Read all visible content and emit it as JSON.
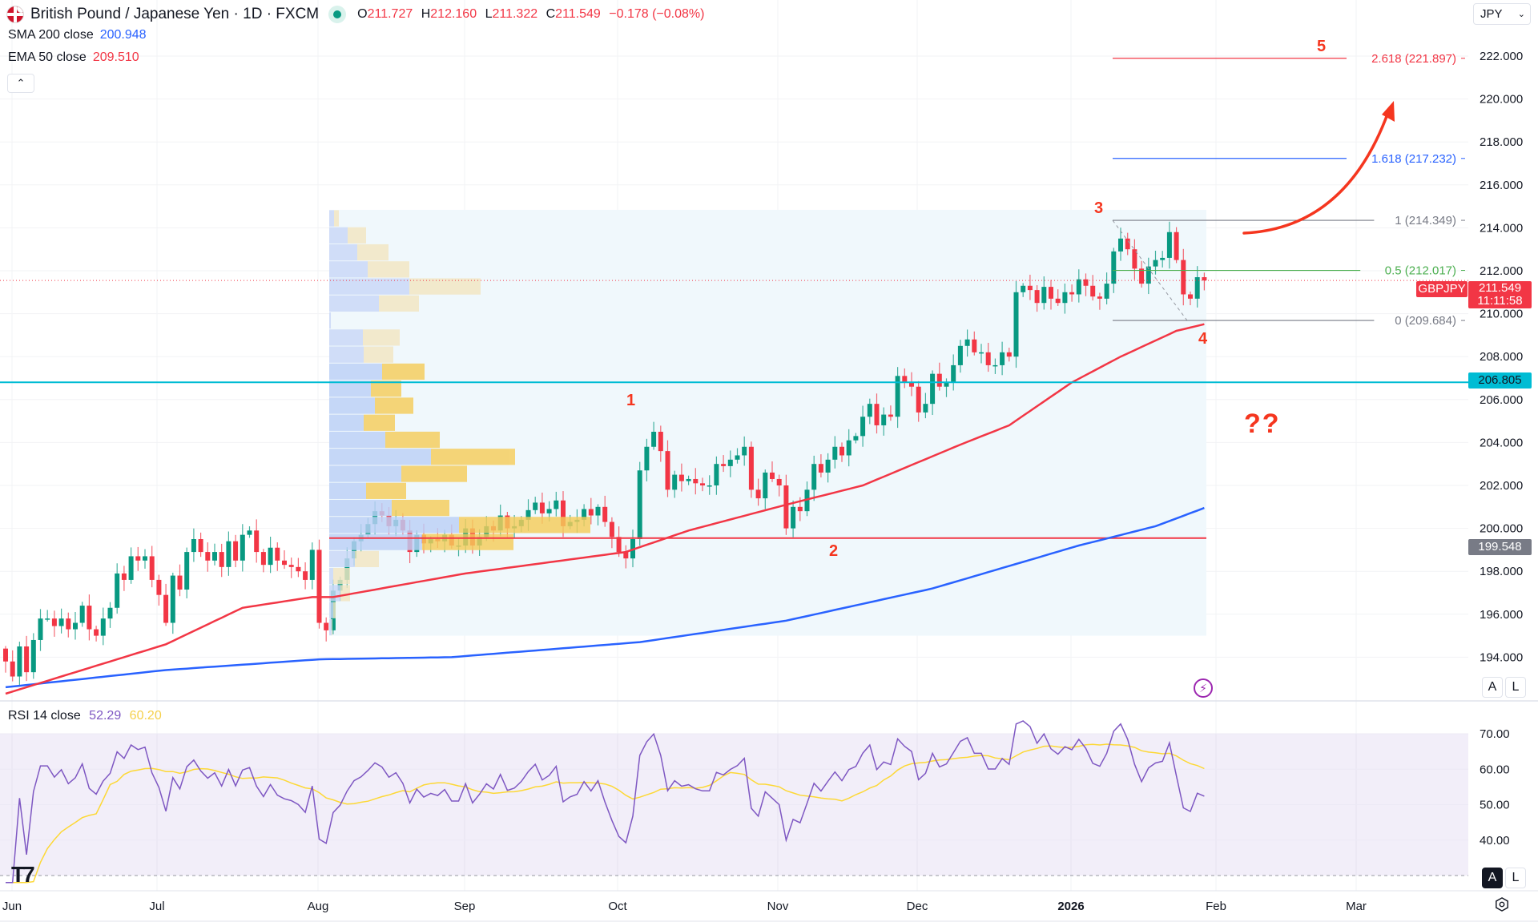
{
  "header": {
    "flag_icon": "gbp-jpy-flag-icon",
    "title": "British Pound / Japanese Yen · 1D · FXCM",
    "market_status_color": "#089981",
    "ohlc": {
      "o_label": "O",
      "o": "211.727",
      "h_label": "H",
      "h": "212.160",
      "l_label": "L",
      "l": "211.322",
      "c_label": "C",
      "c": "211.549",
      "change": "−0.178 (−0.08%)"
    },
    "collapse_icon": "chevron-up-icon"
  },
  "indicators": [
    {
      "name": "SMA 200 close",
      "value": "200.948",
      "color": "#2962ff"
    },
    {
      "name": "EMA 50 close",
      "value": "209.510",
      "color": "#f23645"
    }
  ],
  "currency": {
    "value": "JPY",
    "icon": "chevron-down-icon"
  },
  "price_axis": {
    "ticks": [
      "222.000",
      "220.000",
      "218.000",
      "216.000",
      "214.000",
      "212.000",
      "210.000",
      "208.000",
      "206.000",
      "204.000",
      "202.000",
      "200.000",
      "198.000",
      "196.000",
      "194.000"
    ],
    "symbol": "GBPJPY",
    "last_price": "211.549",
    "countdown": "11:11:58",
    "hline_label": "206.805",
    "poc_label": "199.548"
  },
  "fib_levels": [
    {
      "label": "2.618 (221.897)",
      "price": 221.897,
      "color": "#f23645"
    },
    {
      "label": "1.618 (217.232)",
      "price": 217.232,
      "color": "#2962ff"
    },
    {
      "label": "1 (214.349)",
      "price": 214.349,
      "color": "#787b86"
    },
    {
      "label": "0.5 (212.017)",
      "price": 212.017,
      "color": "#4caf50"
    },
    {
      "label": "0 (209.684)",
      "price": 209.684,
      "color": "#787b86"
    }
  ],
  "annotations": {
    "waves": [
      "1",
      "2",
      "3",
      "4",
      "5"
    ],
    "question": "??",
    "arrow_color": "#f5361f"
  },
  "time_axis": [
    "Jun",
    "Jul",
    "Aug",
    "Sep",
    "Oct",
    "Nov",
    "Dec",
    "2026",
    "Feb",
    "Mar"
  ],
  "rsi": {
    "label": "RSI 14 close",
    "value": "52.29",
    "ma_value": "60.20",
    "color": "#7e57c2",
    "ma_color": "#fdd835",
    "ticks": [
      "70.00",
      "60.00",
      "50.00",
      "40.00"
    ],
    "bands": [
      70,
      50,
      30
    ]
  },
  "buttons": {
    "auto": "A",
    "log": "L"
  },
  "icons": {
    "logo": "tradingview-logo",
    "settings": "gear-icon",
    "alert": "lightning-icon"
  },
  "colors": {
    "up": "#089981",
    "down": "#f23645",
    "hline": "#00bcd4",
    "poc": "#f23645"
  },
  "chart_data": {
    "type": "candlestick",
    "symbol": "GBPJPY",
    "interval": "1D",
    "ylim": [
      193,
      223
    ],
    "first_open": 194.4,
    "closes": [
      193.8,
      193.1,
      194.5,
      193.3,
      194.8,
      195.8,
      195.8,
      195.45,
      195.8,
      195.3,
      195.6,
      196.4,
      195.3,
      195.0,
      195.8,
      196.3,
      197.9,
      197.6,
      198.7,
      198.5,
      198.7,
      197.6,
      196.9,
      195.6,
      197.8,
      197.15,
      198.9,
      199.5,
      198.9,
      198.5,
      198.9,
      198.2,
      199.4,
      198.5,
      199.7,
      199.9,
      198.9,
      198.3,
      199.1,
      198.5,
      198.3,
      198.2,
      198.0,
      197.6,
      199.0,
      195.6,
      195.25,
      197.1,
      197.6,
      198.6,
      199.4,
      199.7,
      200.2,
      200.8,
      200.6,
      200.1,
      200.4,
      199.9,
      198.9,
      199.7,
      199.3,
      199.5,
      199.4,
      199.7,
      199.2,
      199.2,
      200.0,
      199.2,
      199.6,
      200.1,
      199.9,
      200.6,
      200.0,
      200.1,
      200.4,
      200.85,
      201.2,
      200.7,
      200.9,
      201.3,
      200.1,
      200.3,
      200.4,
      200.9,
      200.6,
      201.0,
      200.3,
      199.6,
      198.9,
      198.6,
      199.5,
      202.7,
      203.8,
      204.5,
      203.6,
      201.8,
      202.5,
      202.2,
      202.3,
      202.1,
      202.0,
      202.0,
      203.0,
      202.9,
      203.2,
      203.4,
      203.8,
      201.8,
      201.4,
      202.6,
      202.3,
      202.0,
      200.0,
      201.0,
      200.8,
      201.8,
      203.0,
      202.6,
      203.2,
      203.8,
      203.4,
      204.1,
      204.3,
      205.2,
      205.8,
      204.8,
      205.3,
      205.2,
      207.1,
      206.8,
      206.6,
      205.4,
      205.8,
      207.2,
      206.6,
      206.8,
      207.6,
      208.5,
      208.8,
      208.2,
      208.2,
      207.6,
      207.6,
      208.2,
      208.0,
      211.0,
      211.3,
      211.1,
      210.5,
      211.25,
      210.7,
      210.5,
      211.0,
      210.9,
      211.6,
      211.3,
      210.8,
      210.7,
      211.4,
      212.9,
      213.5,
      213.0,
      212.1,
      211.4,
      212.2,
      212.5,
      212.6,
      213.8,
      212.5,
      210.9,
      210.7,
      211.7,
      211.549
    ],
    "ema50": [
      [
        0,
        192.3
      ],
      [
        11,
        193.4
      ],
      [
        23,
        194.6
      ],
      [
        34,
        196.3
      ],
      [
        44,
        196.8
      ],
      [
        47,
        196.8
      ],
      [
        66,
        197.9
      ],
      [
        89,
        198.9
      ],
      [
        98,
        199.9
      ],
      [
        112,
        201.1
      ],
      [
        123,
        202.0
      ],
      [
        137,
        203.9
      ],
      [
        144,
        204.8
      ],
      [
        153,
        206.8
      ],
      [
        160,
        208.0
      ],
      [
        168,
        209.2
      ],
      [
        172,
        209.51
      ]
    ],
    "sma200": [
      [
        0,
        192.6
      ],
      [
        23,
        193.4
      ],
      [
        45,
        193.9
      ],
      [
        64,
        194.0
      ],
      [
        91,
        194.7
      ],
      [
        112,
        195.7
      ],
      [
        133,
        197.2
      ],
      [
        154,
        199.2
      ],
      [
        165,
        200.1
      ],
      [
        172,
        200.95
      ]
    ],
    "horizontal_line": 206.805,
    "poc": 199.548,
    "volume_profile": {
      "price_top": 214.84,
      "price_bottom": 195.0,
      "rows_up_down": [
        [
          6,
          6
        ],
        [
          23,
          23
        ],
        [
          35,
          39
        ],
        [
          48,
          52
        ],
        [
          100,
          89
        ],
        [
          62,
          50
        ],
        [
          2,
          0
        ],
        [
          42,
          46
        ],
        [
          43,
          37
        ],
        [
          66,
          53
        ],
        [
          52,
          38
        ],
        [
          57,
          48
        ],
        [
          43,
          39
        ],
        [
          70,
          68
        ],
        [
          127,
          105
        ],
        [
          90,
          82
        ],
        [
          46,
          50
        ],
        [
          78,
          72
        ],
        [
          162,
          164
        ],
        [
          116,
          114
        ],
        [
          32,
          30
        ],
        [
          5,
          21
        ],
        [
          14,
          12
        ],
        [
          5,
          3
        ],
        [
          3,
          1
        ]
      ],
      "value_area_rows": [
        9,
        19
      ]
    }
  }
}
